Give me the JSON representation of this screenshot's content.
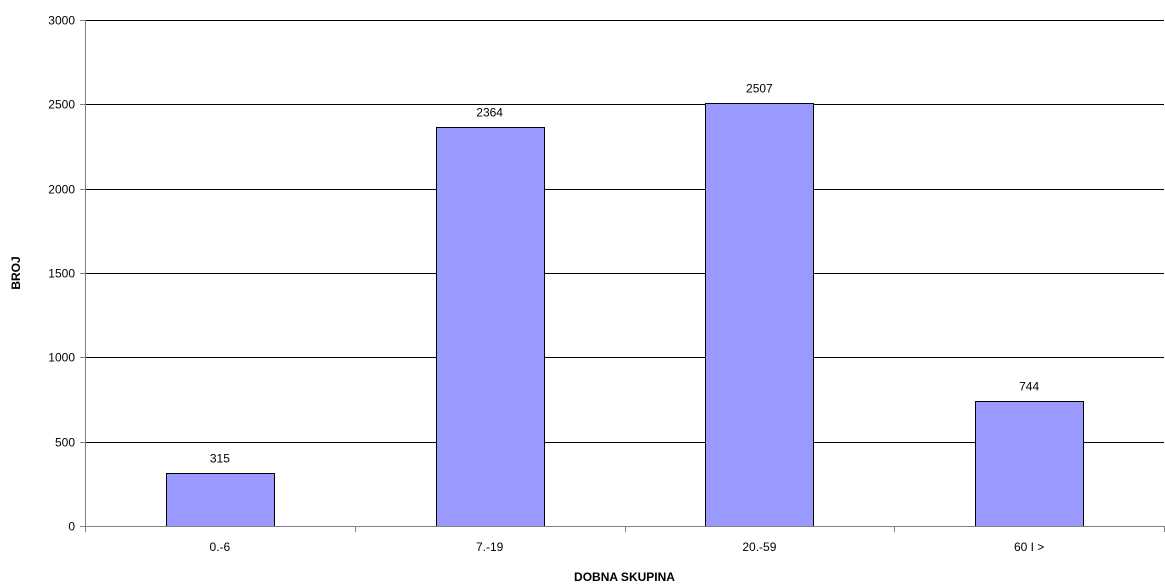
{
  "chart_data": {
    "type": "bar",
    "title": "",
    "xlabel": "DOBNA SKUPINA",
    "ylabel": "BROJ",
    "categories": [
      "0.-6",
      "7.-19",
      "20.-59",
      "60 I >"
    ],
    "values": [
      315,
      2364,
      2507,
      744
    ],
    "data_labels": [
      "315",
      "2364",
      "2507",
      "744"
    ],
    "ylim": [
      0,
      3000
    ],
    "yticks": [
      0,
      500,
      1000,
      1500,
      2000,
      2500,
      3000
    ],
    "ytick_labels": [
      "0",
      "500",
      "1000",
      "1500",
      "2000",
      "2500",
      "3000"
    ],
    "grid": true,
    "legend": "none",
    "colors": {
      "bar_fill": "#9999ff",
      "bar_stroke": "#000000",
      "grid": "#000000",
      "axis": "#808080"
    }
  }
}
